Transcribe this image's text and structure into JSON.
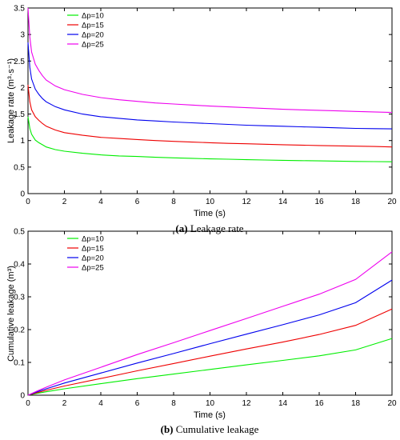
{
  "chart_data": [
    {
      "type": "line",
      "xlabel": "Time (s)",
      "ylabel": "Leakage rate (m³·s⁻¹)",
      "xlim": [
        0,
        20
      ],
      "ylim": [
        0,
        3.5
      ],
      "xticks": [
        0,
        2,
        4,
        6,
        8,
        10,
        12,
        14,
        16,
        18,
        20
      ],
      "yticks": [
        0,
        0.5,
        1,
        1.5,
        2,
        2.5,
        3,
        3.5
      ],
      "grid": false,
      "legend": "top-left",
      "x": [
        0,
        0.1,
        0.2,
        0.4,
        0.6,
        0.8,
        1,
        1.5,
        2,
        3,
        4,
        5,
        6,
        7,
        8,
        9,
        10,
        11,
        12,
        13,
        14,
        15,
        16,
        17,
        18,
        19,
        20
      ],
      "series": [
        {
          "name": "Δp=10",
          "color": "#00ee00",
          "values": [
            1.45,
            1.23,
            1.12,
            1.01,
            0.96,
            0.92,
            0.88,
            0.83,
            0.8,
            0.76,
            0.73,
            0.71,
            0.7,
            0.685,
            0.675,
            0.665,
            0.655,
            0.648,
            0.64,
            0.634,
            0.628,
            0.622,
            0.617,
            0.612,
            0.607,
            0.603,
            0.6
          ]
        },
        {
          "name": "Δp=15",
          "color": "#ee0000",
          "values": [
            2.05,
            1.73,
            1.58,
            1.45,
            1.38,
            1.32,
            1.27,
            1.2,
            1.15,
            1.1,
            1.06,
            1.04,
            1.02,
            1.0,
            0.985,
            0.972,
            0.96,
            0.948,
            0.94,
            0.931,
            0.922,
            0.914,
            0.907,
            0.9,
            0.894,
            0.888,
            0.88
          ]
        },
        {
          "name": "Δp=20",
          "color": "#0000ee",
          "values": [
            2.85,
            2.38,
            2.16,
            1.97,
            1.87,
            1.79,
            1.73,
            1.64,
            1.58,
            1.5,
            1.45,
            1.42,
            1.39,
            1.37,
            1.35,
            1.335,
            1.32,
            1.305,
            1.29,
            1.28,
            1.27,
            1.26,
            1.25,
            1.24,
            1.23,
            1.225,
            1.22
          ]
        },
        {
          "name": "Δp=25",
          "color": "#ee00ee",
          "values": [
            3.5,
            2.95,
            2.67,
            2.44,
            2.32,
            2.22,
            2.14,
            2.03,
            1.96,
            1.87,
            1.81,
            1.77,
            1.74,
            1.71,
            1.69,
            1.67,
            1.65,
            1.635,
            1.62,
            1.605,
            1.59,
            1.58,
            1.57,
            1.56,
            1.55,
            1.54,
            1.53
          ]
        }
      ],
      "caption_label": "(a)",
      "caption_text": "Leakage rate"
    },
    {
      "type": "line",
      "xlabel": "Time (s)",
      "ylabel": "Cumulative leakage (m³)",
      "xlim": [
        0,
        20
      ],
      "ylim": [
        0,
        0.5
      ],
      "xticks": [
        0,
        2,
        4,
        6,
        8,
        10,
        12,
        14,
        16,
        18,
        20
      ],
      "yticks": [
        0,
        0.1,
        0.2,
        0.3,
        0.4,
        0.5
      ],
      "grid": false,
      "legend": "top-left",
      "x": [
        0,
        0.5,
        1,
        2,
        4,
        6,
        8,
        10,
        12,
        14,
        16,
        18,
        20
      ],
      "series": [
        {
          "name": "Δp=10",
          "color": "#00ee00",
          "values": [
            0,
            0.0055,
            0.0105,
            0.0195,
            0.035,
            0.0505,
            0.0645,
            0.0785,
            0.0925,
            0.106,
            0.12,
            0.138,
            0.173
          ]
        },
        {
          "name": "Δp=15",
          "color": "#ee0000",
          "values": [
            0,
            0.0078,
            0.0148,
            0.028,
            0.051,
            0.0745,
            0.0965,
            0.119,
            0.141,
            0.162,
            0.185,
            0.213,
            0.263
          ]
        },
        {
          "name": "Δp=20",
          "color": "#0000ee",
          "values": [
            0,
            0.0105,
            0.0195,
            0.037,
            0.0675,
            0.098,
            0.127,
            0.157,
            0.186,
            0.215,
            0.245,
            0.282,
            0.351
          ]
        },
        {
          "name": "Δp=25",
          "color": "#ee00ee",
          "values": [
            0,
            0.013,
            0.0245,
            0.0465,
            0.085,
            0.124,
            0.16,
            0.197,
            0.234,
            0.271,
            0.308,
            0.353,
            0.437
          ]
        }
      ],
      "caption_label": "(b)",
      "caption_text": "Cumulative leakage"
    }
  ]
}
